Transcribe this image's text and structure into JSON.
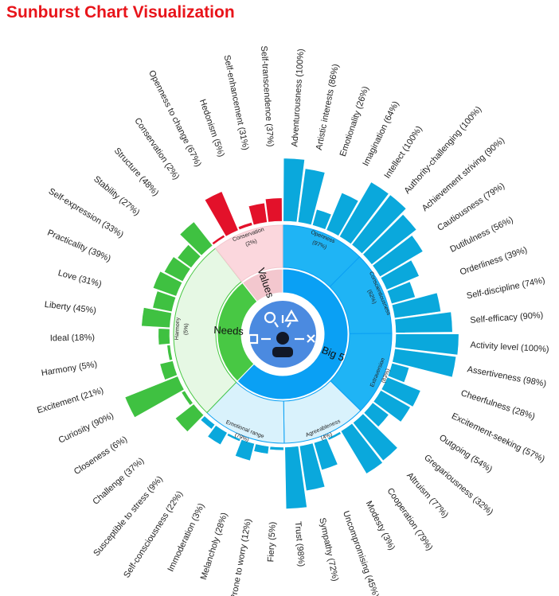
{
  "title": "Sunburst Chart Visualization",
  "colors": {
    "big5_inner": "#0aa0f4",
    "big5_mid": "#1fb4f5",
    "big5_light": "#d9f2fc",
    "big5_outer": "#0aa8dc",
    "needs_inner": "#48c844",
    "needs_mid": "#e6f8e4",
    "needs_outer": "#3fc141",
    "values_inner": "#f3c7ce",
    "values_mid": "#fbd7dd",
    "values_outer": "#e3112a",
    "center": "#4b8ae0",
    "border": "#ffffff"
  },
  "center_icon": "personality-insights-icon",
  "chart_data": {
    "type": "sunburst",
    "title": "Sunburst Chart Visualization",
    "root": [
      {
        "name": "Big 5",
        "value": 97,
        "children": [
          {
            "name": "Openness",
            "value": 97,
            "children": [
              {
                "label": "Adventurousness (100%)",
                "value": 100
              },
              {
                "label": "Artistic interests (86%)",
                "value": 86
              },
              {
                "label": "Emotionality (26%)",
                "value": 26
              },
              {
                "label": "Imagination (64%)",
                "value": 64
              },
              {
                "label": "Intellect (100%)",
                "value": 100
              },
              {
                "label": "Authority-challenging (100%)",
                "value": 100
              }
            ]
          },
          {
            "name": "Conscientiousness",
            "value": 62,
            "children": [
              {
                "label": "Achievement striving (90%)",
                "value": 90
              },
              {
                "label": "Cautiousness (79%)",
                "value": 79
              },
              {
                "label": "Dutifulness (56%)",
                "value": 56
              },
              {
                "label": "Orderliness (39%)",
                "value": 39
              },
              {
                "label": "Self-discipline (74%)",
                "value": 74
              },
              {
                "label": "Self-efficacy (90%)",
                "value": 90
              }
            ]
          },
          {
            "name": "Extraversion",
            "value": 83,
            "children": [
              {
                "label": "Activity level (100%)",
                "value": 100
              },
              {
                "label": "Assertiveness (98%)",
                "value": 98
              },
              {
                "label": "Cheerfulness (28%)",
                "value": 28
              },
              {
                "label": "Excitement-seeking (57%)",
                "value": 57
              },
              {
                "label": "Outgoing (54%)",
                "value": 54
              },
              {
                "label": "Gregariousness (32%)",
                "value": 32
              }
            ]
          },
          {
            "name": "Agreeableness",
            "value": 4,
            "children": [
              {
                "label": "Altruism (77%)",
                "value": 77
              },
              {
                "label": "Cooperation (79%)",
                "value": 79
              },
              {
                "label": "Modesty (3%)",
                "value": 3
              },
              {
                "label": "Uncompromising (45%)",
                "value": 45
              },
              {
                "label": "Sympathy (72%)",
                "value": 72
              },
              {
                "label": "Trust (98%)",
                "value": 98
              }
            ]
          },
          {
            "name": "Emotional range",
            "value": 79,
            "children": [
              {
                "label": "Fiery (5%)",
                "value": 5
              },
              {
                "label": "Prone to worry (12%)",
                "value": 12
              },
              {
                "label": "Melancholy (28%)",
                "value": 28
              },
              {
                "label": "Immoderation (3%)",
                "value": 3
              },
              {
                "label": "Self-consciousness (22%)",
                "value": 22
              },
              {
                "label": "Susceptible to stress (9%)",
                "value": 9
              }
            ]
          }
        ]
      },
      {
        "name": "Needs",
        "value": 5,
        "children": [
          {
            "name": "Harmony",
            "value": 5,
            "children": [
              {
                "label": "Challenge (37%)",
                "value": 37
              },
              {
                "label": "Closeness (6%)",
                "value": 6
              },
              {
                "label": "Curiosity (90%)",
                "value": 90
              },
              {
                "label": "Excitement (21%)",
                "value": 21
              },
              {
                "label": "Harmony (5%)",
                "value": 5
              },
              {
                "label": "Ideal (18%)",
                "value": 18
              },
              {
                "label": "Liberty (45%)",
                "value": 45
              },
              {
                "label": "Love (31%)",
                "value": 31
              },
              {
                "label": "Practicality (39%)",
                "value": 39
              },
              {
                "label": "Self-expression (33%)",
                "value": 33
              },
              {
                "label": "Stability (27%)",
                "value": 27
              },
              {
                "label": "Structure (48%)",
                "value": 48
              }
            ]
          }
        ]
      },
      {
        "name": "Values",
        "value": 2,
        "children": [
          {
            "name": "Conservation",
            "value": 2,
            "children": [
              {
                "label": "Conservation (2%)",
                "value": 2
              },
              {
                "label": "Openness to change (67%)",
                "value": 67
              },
              {
                "label": "Hedonism (5%)",
                "value": 5
              },
              {
                "label": "Self-enhancement (31%)",
                "value": 31
              },
              {
                "label": "Self-transcendence (37%)",
                "value": 37
              }
            ]
          }
        ]
      }
    ]
  }
}
